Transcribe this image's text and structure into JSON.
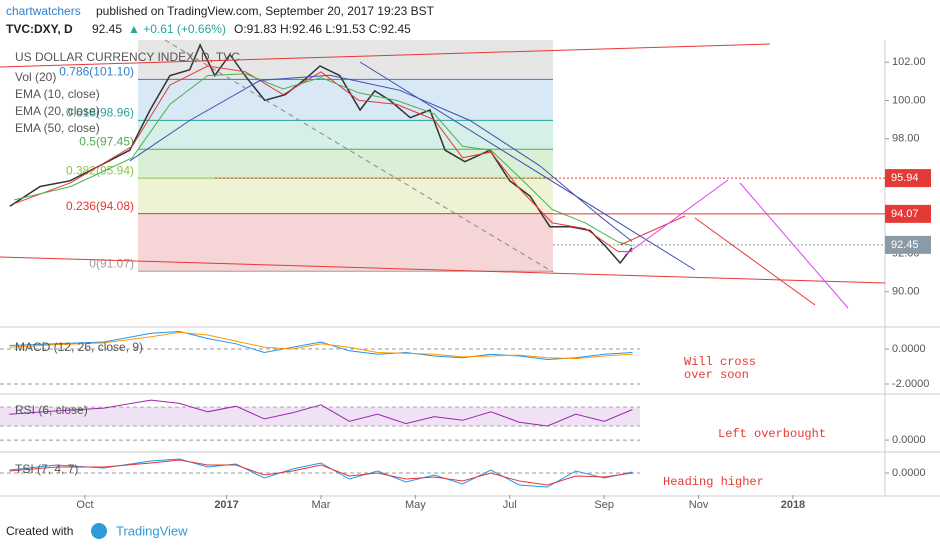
{
  "header": {
    "author": "chartwatchers",
    "published": "published on TradingView.com, September 20, 2017 19:23 BST",
    "symbol": "TVC:DXY, D",
    "last": "92.45",
    "change": "▲ +0.61 (+0.66%)",
    "ohlc": "O:91.83 H:92.46 L:91.53 C:92.45"
  },
  "legend_extra": "Vol (20)",
  "footer": {
    "created": "Created with",
    "brand": "TradingView"
  },
  "chart_data": [
    {
      "type": "line",
      "xlim": [
        8.2,
        26.95
      ],
      "ylim": [
        88.26,
        103.16
      ],
      "yticks": [
        {
          "value": 102,
          "label": "102.00"
        },
        {
          "value": 100,
          "label": "100.00"
        },
        {
          "value": 98,
          "label": "98.00"
        },
        {
          "value": 92,
          "label": "92.00"
        },
        {
          "value": 90,
          "label": "90.00"
        }
      ],
      "series": [
        {
          "name": "US DOLLAR CURRENCY INDEX, D, TVC",
          "color": "#333333",
          "x": [
            8.41,
            9.05,
            9.68,
            10.32,
            10.95,
            11.38,
            11.8,
            12.22,
            12.44,
            12.75,
            13.07,
            13.39,
            13.81,
            14.24,
            14.66,
            14.98,
            15.4,
            15.83,
            16.14,
            16.46,
            16.89,
            17.31,
            17.63,
            18.05,
            18.58,
            19.0,
            19.43,
            19.85,
            20.28,
            20.7,
            21.02,
            21.34,
            21.59
          ],
          "values": [
            94.47,
            95.5,
            95.8,
            96.6,
            97.4,
            99.5,
            101.3,
            101.6,
            102.9,
            101.3,
            102.4,
            101.3,
            100.0,
            100.3,
            101.1,
            101.8,
            101.3,
            99.5,
            100.5,
            100.0,
            99.1,
            99.5,
            97.4,
            96.8,
            97.4,
            95.8,
            95.0,
            93.4,
            93.4,
            93.2,
            92.4,
            91.5,
            92.3
          ]
        },
        {
          "name": "EMA (10, close)",
          "color": "#e53935",
          "x": [
            8.5,
            9.7,
            11.0,
            11.8,
            12.6,
            13.4,
            14.2,
            15.0,
            15.8,
            16.6,
            17.4,
            18.0,
            18.6,
            19.2,
            19.9,
            20.6,
            21.3,
            21.6
          ],
          "values": [
            94.6,
            95.7,
            97.6,
            100.8,
            101.8,
            101.5,
            100.3,
            101.5,
            100.0,
            99.8,
            99.0,
            97.0,
            97.3,
            95.4,
            93.6,
            93.3,
            92.1,
            92.1
          ]
        },
        {
          "name": "EMA (20, close)",
          "color": "#4caf50",
          "x": [
            8.5,
            9.7,
            11.0,
            11.8,
            12.6,
            13.4,
            14.2,
            15.0,
            15.8,
            16.6,
            17.4,
            18.0,
            18.6,
            19.2,
            19.9,
            20.6,
            21.3,
            21.6
          ],
          "values": [
            94.8,
            95.5,
            97.0,
            99.8,
            101.3,
            101.4,
            100.6,
            101.2,
            100.4,
            100.0,
            99.3,
            97.6,
            97.4,
            96.0,
            94.3,
            93.6,
            92.6,
            92.4
          ]
        },
        {
          "name": "EMA (50, close)",
          "color": "#3f51b5",
          "x": [
            10.95,
            12.22,
            13.71,
            15.19,
            16.67,
            18.16,
            19.64,
            20.91,
            21.59
          ],
          "values": [
            96.84,
            98.95,
            101.05,
            101.32,
            100.53,
            98.95,
            96.58,
            93.95,
            92.63
          ]
        }
      ],
      "fib_levels": [
        {
          "label": "0.786(101.10)",
          "value": 101.1,
          "color": "#2f7fd1",
          "fill": "#d8e8f5"
        },
        {
          "label": "0.618(98.96)",
          "value": 98.96,
          "color": "#26a69a",
          "fill": "#d6efe8"
        },
        {
          "label": "0.5(97.45)",
          "value": 97.45,
          "color": "#4caf50",
          "fill": "#d9f0d6"
        },
        {
          "label": "0.382(95.94)",
          "value": 95.94,
          "color": "#8bc34a",
          "fill": "#eef3d6"
        },
        {
          "label": "0.236(94.08)",
          "value": 94.08,
          "color": "#e53935",
          "fill": "#f5d5d5"
        },
        {
          "label": "0(91.07)",
          "value": 91.07,
          "color": "#9e9e9e",
          "fill": "#f5d5d5"
        }
      ],
      "price_tags": [
        {
          "value": 95.94,
          "color": "#e53935"
        },
        {
          "value": 94.07,
          "color": "#e53935"
        },
        {
          "value": 92.45,
          "color": "#8a9ba8"
        }
      ]
    },
    {
      "type": "line",
      "title": "MACD (12, 26, close, 9)",
      "xlim": [
        8.2,
        26.95
      ],
      "ylim": [
        -2.457,
        1.086
      ],
      "yticks": [
        {
          "value": 0,
          "label": "0.0000"
        },
        {
          "value": -2,
          "label": "-2.0000"
        }
      ],
      "x": [
        8.4,
        9.4,
        10.4,
        11.4,
        12.0,
        12.6,
        13.2,
        13.8,
        14.4,
        15.0,
        15.6,
        16.2,
        16.8,
        17.4,
        18.0,
        18.6,
        19.2,
        19.8,
        20.4,
        21.0,
        21.6
      ],
      "series": [
        {
          "color": "#2196f3",
          "values": [
            0.2,
            0.3,
            0.4,
            0.9,
            1.0,
            0.6,
            0.3,
            -0.2,
            0.1,
            0.4,
            -0.1,
            -0.3,
            -0.2,
            -0.4,
            -0.5,
            -0.3,
            -0.4,
            -0.6,
            -0.5,
            -0.3,
            -0.2
          ]
        },
        {
          "color": "#ff9800",
          "values": [
            0.1,
            0.25,
            0.35,
            0.7,
            0.95,
            0.8,
            0.45,
            0.1,
            0.0,
            0.3,
            0.1,
            -0.2,
            -0.25,
            -0.3,
            -0.45,
            -0.4,
            -0.35,
            -0.5,
            -0.55,
            -0.4,
            -0.3
          ]
        }
      ],
      "annotation": [
        "Will cross",
        "over soon"
      ]
    },
    {
      "type": "line",
      "title": "RSI (6, close)",
      "xlim": [
        8.2,
        26.95
      ],
      "ylim": [
        -21,
        100
      ],
      "yticks": [
        {
          "value": 0,
          "label": "0.0000"
        }
      ],
      "band": [
        30,
        70
      ],
      "x": [
        8.4,
        9.4,
        10.4,
        11.4,
        12.0,
        12.6,
        13.2,
        13.8,
        14.4,
        15.0,
        15.6,
        16.2,
        16.8,
        17.4,
        18.0,
        18.6,
        19.2,
        19.8,
        20.4,
        21.0,
        21.6
      ],
      "series": [
        {
          "color": "#9c27b0",
          "values": [
            55,
            62,
            68,
            85,
            78,
            60,
            72,
            45,
            58,
            75,
            40,
            55,
            35,
            50,
            42,
            60,
            38,
            30,
            55,
            40,
            65
          ]
        }
      ],
      "annotation": [
        "Left overbought"
      ]
    },
    {
      "type": "line",
      "title": "TSI (7, 4, 7)",
      "xlim": [
        8.2,
        26.95
      ],
      "ylim": [
        -2.1,
        2.1
      ],
      "yticks": [
        {
          "value": 0,
          "label": "0.0000"
        }
      ],
      "xticks": [
        {
          "value": 10,
          "label": "Oct"
        },
        {
          "value": 13,
          "label": "2017"
        },
        {
          "value": 15,
          "label": "Mar"
        },
        {
          "value": 17,
          "label": "May"
        },
        {
          "value": 19,
          "label": "Jul"
        },
        {
          "value": 21,
          "label": "Sep"
        },
        {
          "value": 23,
          "label": "Nov"
        },
        {
          "value": 25,
          "label": "2018"
        }
      ],
      "x": [
        8.4,
        9.4,
        10.4,
        11.4,
        12.0,
        12.6,
        13.2,
        13.8,
        14.4,
        15.0,
        15.6,
        16.2,
        16.8,
        17.4,
        18.0,
        18.6,
        19.2,
        19.8,
        20.4,
        21.0,
        21.6
      ],
      "series": [
        {
          "color": "#2196f3",
          "values": [
            0.3,
            0.8,
            0.5,
            1.2,
            1.4,
            0.6,
            0.9,
            -0.5,
            0.4,
            1.0,
            -0.6,
            0.2,
            -0.9,
            -0.2,
            -1.1,
            0.3,
            -1.2,
            -1.4,
            0.2,
            -0.5,
            0.1
          ]
        },
        {
          "color": "#e53935",
          "values": [
            0.2,
            0.6,
            0.6,
            1.0,
            1.3,
            0.8,
            0.8,
            -0.2,
            0.2,
            0.8,
            -0.3,
            0.0,
            -0.6,
            -0.4,
            -0.8,
            0.0,
            -0.8,
            -1.2,
            -0.3,
            -0.4,
            0.0
          ]
        }
      ],
      "annotation": [
        "Heading higher"
      ]
    }
  ]
}
